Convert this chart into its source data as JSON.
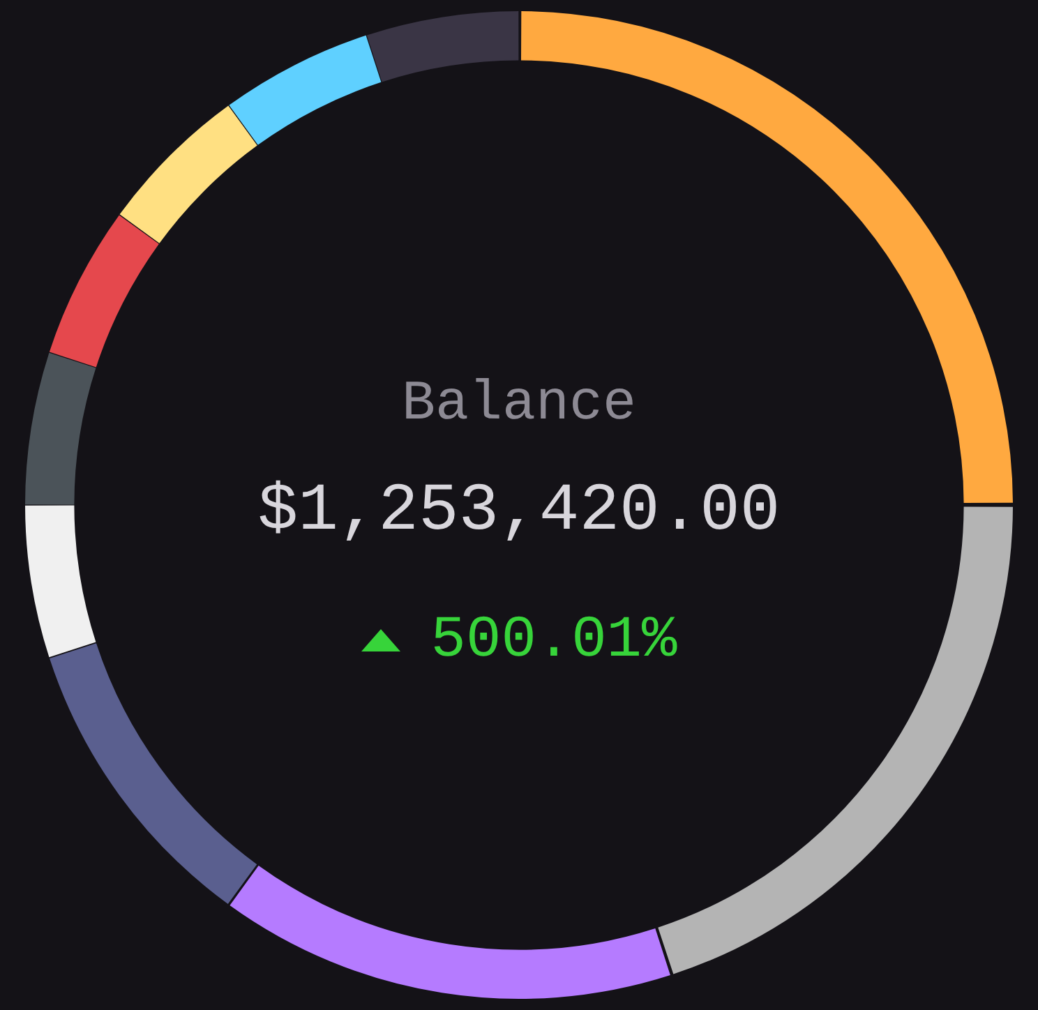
{
  "chart_data": {
    "type": "donut",
    "categories": [
      null,
      null,
      null,
      null,
      null,
      null,
      null,
      null,
      null,
      null
    ],
    "values": [
      25,
      20,
      15,
      10,
      5,
      5,
      5,
      5,
      5,
      5
    ],
    "colors": [
      "#ffa940",
      "#b4b4b4",
      "#b57bff",
      "#5a5f8f",
      "#f0f0f0",
      "#4b5359",
      "#e5484d",
      "#ffe082",
      "#5fd0ff",
      "#3a3545"
    ],
    "annotations": [
      "Balance",
      "$1,253,420.00",
      "500.01%"
    ],
    "legend": false
  }
}
